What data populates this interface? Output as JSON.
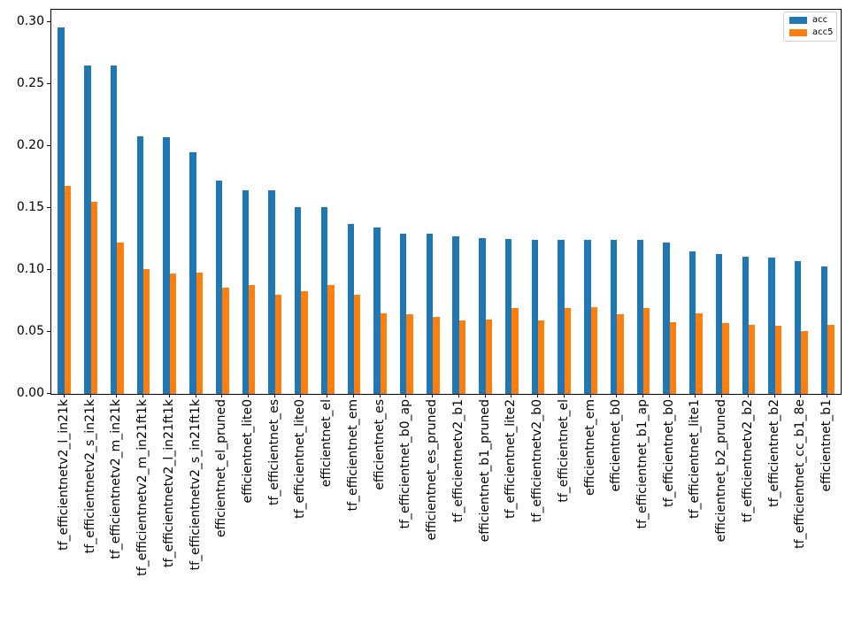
{
  "chart_data": {
    "type": "bar",
    "title": "",
    "xlabel": "",
    "ylabel": "",
    "grid": false,
    "legend_position": "upper right",
    "ylim": [
      0,
      0.31
    ],
    "yticks": [
      0.0,
      0.05,
      0.1,
      0.15,
      0.2,
      0.25,
      0.3
    ],
    "ytick_labels": [
      "0.00",
      "0.05",
      "0.10",
      "0.15",
      "0.20",
      "0.25",
      "0.30"
    ],
    "categories": [
      "tf_efficientnetv2_l_in21k",
      "tf_efficientnetv2_s_in21k",
      "tf_efficientnetv2_m_in21k",
      "tf_efficientnetv2_m_in21ft1k",
      "tf_efficientnetv2_l_in21ft1k",
      "tf_efficientnetv2_s_in21ft1k",
      "efficientnet_el_pruned",
      "efficientnet_lite0",
      "tf_efficientnet_es",
      "tf_efficientnet_lite0",
      "efficientnet_el",
      "tf_efficientnet_em",
      "efficientnet_es",
      "tf_efficientnet_b0_ap",
      "efficientnet_es_pruned",
      "tf_efficientnetv2_b1",
      "efficientnet_b1_pruned",
      "tf_efficientnet_lite2",
      "tf_efficientnetv2_b0",
      "tf_efficientnet_el",
      "efficientnet_em",
      "efficientnet_b0",
      "tf_efficientnet_b1_ap",
      "tf_efficientnet_b0",
      "tf_efficientnet_lite1",
      "efficientnet_b2_pruned",
      "tf_efficientnetv2_b2",
      "tf_efficientnet_b2",
      "tf_efficientnet_cc_b1_8e",
      "efficientnet_b1"
    ],
    "series": [
      {
        "name": "acc",
        "color": "#1f77b4",
        "values": [
          0.296,
          0.265,
          0.265,
          0.208,
          0.207,
          0.195,
          0.172,
          0.164,
          0.164,
          0.151,
          0.151,
          0.137,
          0.134,
          0.129,
          0.129,
          0.127,
          0.126,
          0.125,
          0.124,
          0.124,
          0.124,
          0.124,
          0.124,
          0.122,
          0.115,
          0.113,
          0.111,
          0.11,
          0.107,
          0.103
        ]
      },
      {
        "name": "acc5",
        "color": "#ff7f0e",
        "values": [
          0.168,
          0.155,
          0.122,
          0.101,
          0.097,
          0.098,
          0.086,
          0.088,
          0.08,
          0.083,
          0.088,
          0.08,
          0.065,
          0.064,
          0.062,
          0.059,
          0.06,
          0.069,
          0.059,
          0.069,
          0.07,
          0.064,
          0.069,
          0.058,
          0.065,
          0.057,
          0.056,
          0.055,
          0.051,
          0.056
        ]
      }
    ]
  }
}
